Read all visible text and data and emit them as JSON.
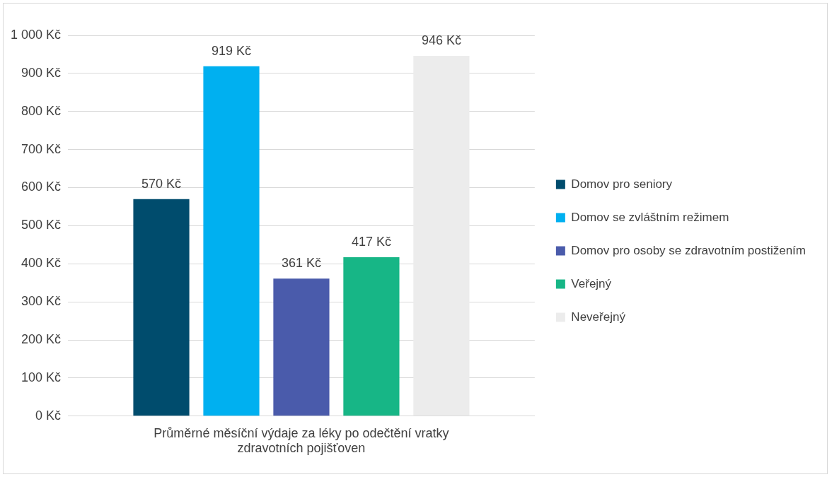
{
  "chart_data": {
    "type": "bar",
    "categories": [
      "Průměrné měsíční výdaje za léky po odečtění vratky zdravotních pojišťoven"
    ],
    "series": [
      {
        "name": "Domov pro seniory",
        "color": "#004c6d",
        "values": [
          570
        ],
        "value_labels": [
          "570 Kč"
        ]
      },
      {
        "name": "Domov se zvláštním režimem",
        "color": "#00b0f0",
        "values": [
          919
        ],
        "value_labels": [
          "919 Kč"
        ]
      },
      {
        "name": "Domov pro osoby se zdravotním postižením",
        "color": "#4a5bab",
        "values": [
          361
        ],
        "value_labels": [
          "361 Kč"
        ]
      },
      {
        "name": "Veřejný",
        "color": "#17b686",
        "values": [
          417
        ],
        "value_labels": [
          "417 Kč"
        ]
      },
      {
        "name": "Neveřejný",
        "color": "#ececec",
        "values": [
          946
        ],
        "value_labels": [
          "946 Kč"
        ]
      }
    ],
    "ylim": [
      0,
      1000
    ],
    "yticks": [
      {
        "value": 0,
        "label": "0 Kč"
      },
      {
        "value": 100,
        "label": "100 Kč"
      },
      {
        "value": 200,
        "label": "200 Kč"
      },
      {
        "value": 300,
        "label": "300 Kč"
      },
      {
        "value": 400,
        "label": "400 Kč"
      },
      {
        "value": 500,
        "label": "500 Kč"
      },
      {
        "value": 600,
        "label": "600 Kč"
      },
      {
        "value": 700,
        "label": "700 Kč"
      },
      {
        "value": 800,
        "label": "800 Kč"
      },
      {
        "value": 900,
        "label": "900 Kč"
      },
      {
        "value": 1000,
        "label": "1 000 Kč"
      }
    ],
    "grid": "y",
    "legend": "right"
  }
}
